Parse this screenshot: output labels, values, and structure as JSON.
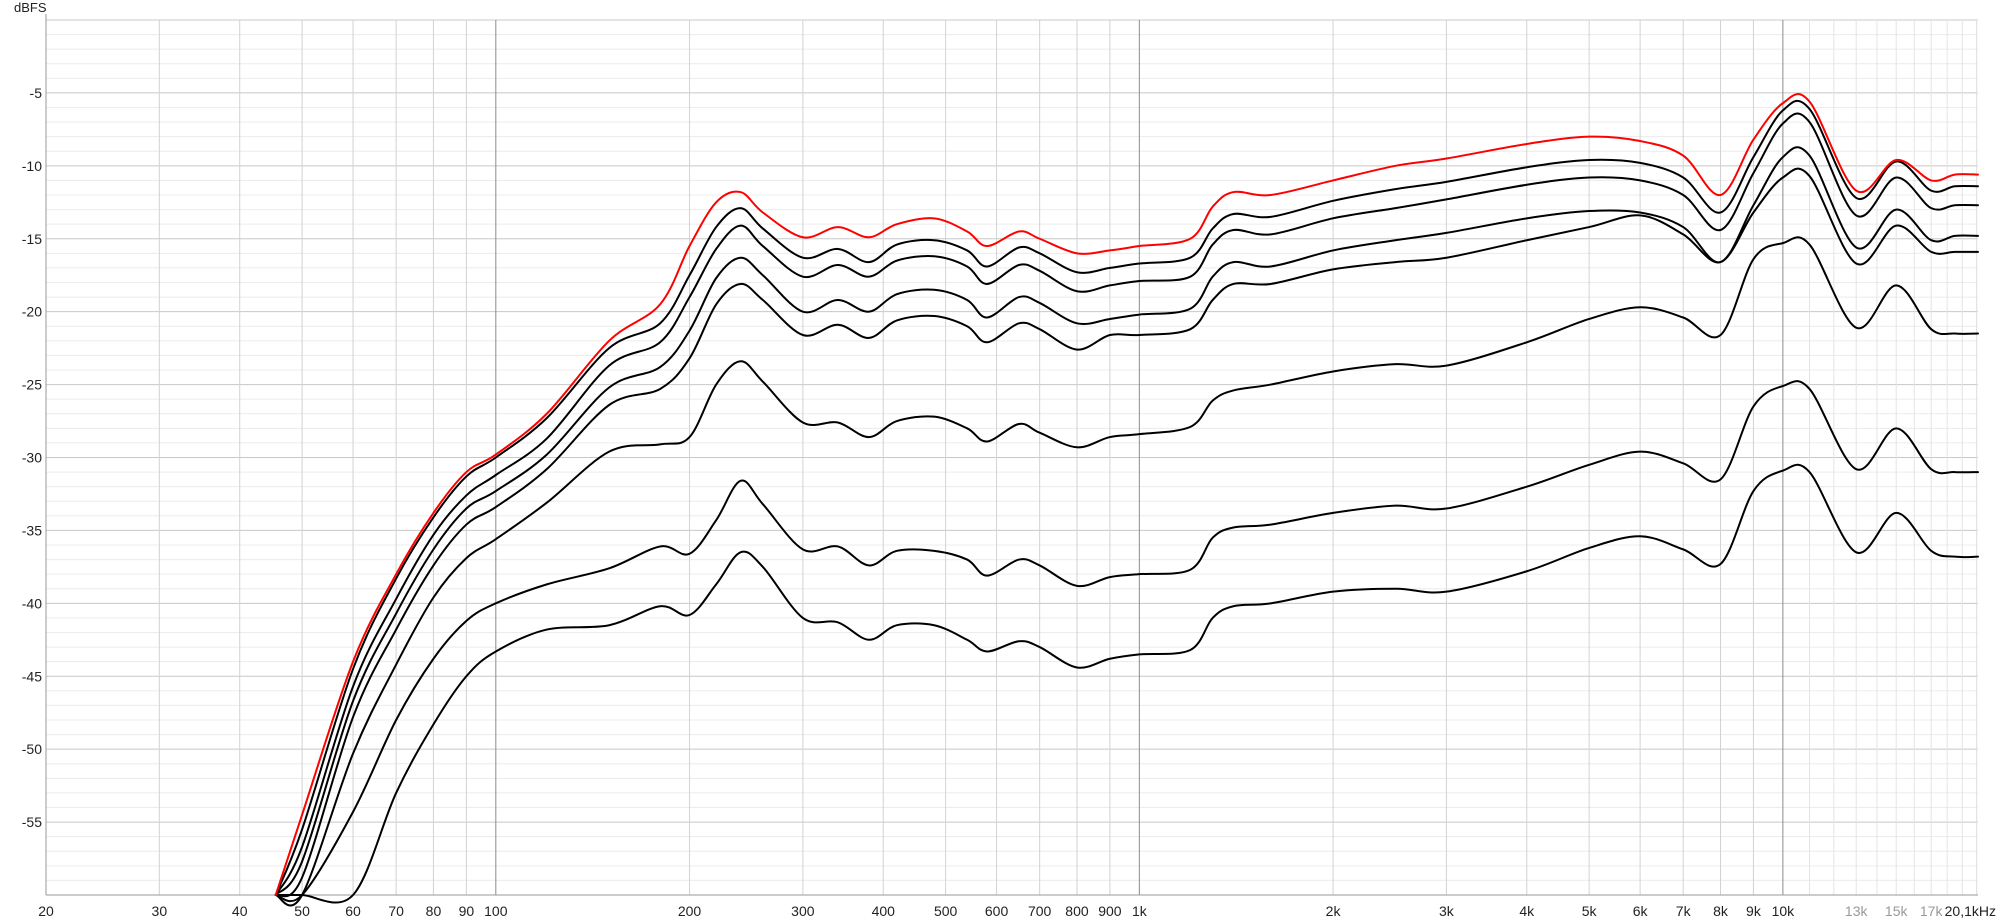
{
  "chart_data": {
    "type": "line",
    "title": "",
    "ylabel": "dBFS",
    "xlabel": "",
    "x_scale": "log",
    "xlim": [
      20,
      20100
    ],
    "ylim": [
      -60,
      0
    ],
    "grid": true,
    "x_ticks": [
      {
        "value": 20,
        "label": "20"
      },
      {
        "value": 30,
        "label": "30"
      },
      {
        "value": 40,
        "label": "40"
      },
      {
        "value": 50,
        "label": "50"
      },
      {
        "value": 60,
        "label": "60"
      },
      {
        "value": 70,
        "label": "70"
      },
      {
        "value": 80,
        "label": "80"
      },
      {
        "value": 90,
        "label": "90"
      },
      {
        "value": 100,
        "label": "100"
      },
      {
        "value": 200,
        "label": "200"
      },
      {
        "value": 300,
        "label": "300"
      },
      {
        "value": 400,
        "label": "400"
      },
      {
        "value": 500,
        "label": "500"
      },
      {
        "value": 600,
        "label": "600"
      },
      {
        "value": 700,
        "label": "700"
      },
      {
        "value": 800,
        "label": "800"
      },
      {
        "value": 900,
        "label": "900"
      },
      {
        "value": 1000,
        "label": "1k"
      },
      {
        "value": 2000,
        "label": "2k"
      },
      {
        "value": 3000,
        "label": "3k"
      },
      {
        "value": 4000,
        "label": "4k"
      },
      {
        "value": 5000,
        "label": "5k"
      },
      {
        "value": 6000,
        "label": "6k"
      },
      {
        "value": 7000,
        "label": "7k"
      },
      {
        "value": 8000,
        "label": "8k"
      },
      {
        "value": 9000,
        "label": "9k"
      },
      {
        "value": 10000,
        "label": "10k"
      },
      {
        "value": 13000,
        "label": "13k",
        "faint": true
      },
      {
        "value": 15000,
        "label": "15k",
        "faint": true
      },
      {
        "value": 17000,
        "label": "17k",
        "faint": true
      },
      {
        "value": 20100,
        "label": "20,1kHz"
      }
    ],
    "y_ticks": [
      {
        "value": -5,
        "label": "-5"
      },
      {
        "value": -10,
        "label": "-10"
      },
      {
        "value": -15,
        "label": "-15"
      },
      {
        "value": -20,
        "label": "-20"
      },
      {
        "value": -25,
        "label": "-25"
      },
      {
        "value": -30,
        "label": "-30"
      },
      {
        "value": -35,
        "label": "-35"
      },
      {
        "value": -40,
        "label": "-40"
      },
      {
        "value": -45,
        "label": "-45"
      },
      {
        "value": -50,
        "label": "-50"
      },
      {
        "value": -55,
        "label": "-55"
      }
    ],
    "x": [
      45.5,
      50,
      60,
      70,
      80,
      90,
      100,
      120,
      150,
      180,
      200,
      220,
      240,
      260,
      300,
      340,
      380,
      420,
      480,
      540,
      580,
      650,
      700,
      800,
      900,
      1000,
      1200,
      1300,
      1400,
      1600,
      2000,
      2500,
      3000,
      4000,
      5000,
      6000,
      7000,
      8000,
      9000,
      10000,
      11000,
      13000,
      15000,
      17000,
      18500,
      20100
    ],
    "series": [
      {
        "color": "#ff0000",
        "values": [
          -60.0,
          -54.5,
          -44.0,
          -38.0,
          -33.8,
          -31.0,
          -29.8,
          -27.0,
          -22.0,
          -19.5,
          -15.5,
          -12.5,
          -11.8,
          -13.2,
          -14.9,
          -14.2,
          -14.9,
          -14.0,
          -13.6,
          -14.5,
          -15.5,
          -14.5,
          -15.0,
          -16.0,
          -15.8,
          -15.5,
          -15.0,
          -12.8,
          -11.8,
          -12.0,
          -11.0,
          -10.0,
          -9.5,
          -8.5,
          -8.0,
          -8.3,
          -9.3,
          -12.0,
          -8.2,
          -5.7,
          -5.6,
          -11.7,
          -9.6,
          -11.0,
          -10.6,
          -10.6
        ]
      },
      {
        "color": "#000000",
        "values": [
          -60.0,
          -55.5,
          -44.5,
          -38.3,
          -34.1,
          -31.3,
          -30.0,
          -27.3,
          -22.5,
          -20.8,
          -17.5,
          -14.2,
          -12.9,
          -14.3,
          -16.3,
          -15.7,
          -16.6,
          -15.4,
          -15.1,
          -15.8,
          -16.9,
          -15.6,
          -16.0,
          -17.3,
          -17.0,
          -16.7,
          -16.3,
          -14.3,
          -13.3,
          -13.5,
          -12.4,
          -11.6,
          -11.1,
          -10.1,
          -9.6,
          -9.8,
          -10.8,
          -13.2,
          -9.4,
          -6.2,
          -6.1,
          -12.2,
          -9.7,
          -11.7,
          -11.4,
          -11.4
        ]
      },
      {
        "color": "#000000",
        "values": [
          -60.0,
          -56.7,
          -45.7,
          -39.7,
          -35.3,
          -32.6,
          -31.2,
          -28.7,
          -23.7,
          -22.1,
          -19.0,
          -15.7,
          -14.1,
          -15.5,
          -17.6,
          -16.8,
          -17.6,
          -16.5,
          -16.2,
          -16.9,
          -18.1,
          -16.8,
          -17.2,
          -18.6,
          -18.2,
          -17.9,
          -17.6,
          -15.4,
          -14.4,
          -14.7,
          -13.6,
          -12.9,
          -12.3,
          -11.3,
          -10.8,
          -11.0,
          -12.0,
          -14.4,
          -10.5,
          -7.1,
          -7.0,
          -13.4,
          -10.8,
          -12.9,
          -12.7,
          -12.7
        ]
      },
      {
        "color": "#000000",
        "values": [
          -60.0,
          -57.7,
          -46.7,
          -40.7,
          -36.3,
          -33.5,
          -32.3,
          -29.8,
          -25.2,
          -23.8,
          -21.3,
          -17.7,
          -16.3,
          -17.5,
          -20.0,
          -19.2,
          -20.0,
          -18.8,
          -18.5,
          -19.2,
          -20.4,
          -19.0,
          -19.4,
          -20.8,
          -20.5,
          -20.2,
          -19.8,
          -17.6,
          -16.6,
          -16.9,
          -15.8,
          -15.1,
          -14.6,
          -13.6,
          -13.1,
          -13.2,
          -14.2,
          -16.6,
          -12.7,
          -9.4,
          -9.3,
          -15.6,
          -13.0,
          -15.1,
          -14.8,
          -14.8
        ]
      },
      {
        "color": "#000000",
        "values": [
          -60.0,
          -58.8,
          -47.8,
          -41.8,
          -37.4,
          -34.6,
          -33.4,
          -30.8,
          -26.4,
          -25.3,
          -23.2,
          -19.5,
          -18.1,
          -19.2,
          -21.6,
          -20.9,
          -21.8,
          -20.6,
          -20.3,
          -21.0,
          -22.1,
          -20.8,
          -21.2,
          -22.6,
          -21.6,
          -21.6,
          -21.2,
          -19.2,
          -18.1,
          -18.1,
          -17.1,
          -16.6,
          -16.3,
          -15.1,
          -14.2,
          -13.4,
          -14.7,
          -16.6,
          -13.2,
          -10.8,
          -10.7,
          -16.7,
          -14.1,
          -15.9,
          -15.9,
          -15.9
        ]
      },
      {
        "color": "#000000",
        "values": [
          -60.0,
          -60.0,
          -50.3,
          -44.2,
          -39.6,
          -36.9,
          -35.6,
          -33.1,
          -29.6,
          -29.1,
          -28.6,
          -25.0,
          -23.4,
          -24.8,
          -27.6,
          -27.6,
          -28.6,
          -27.5,
          -27.2,
          -28.0,
          -28.9,
          -27.7,
          -28.3,
          -29.3,
          -28.6,
          -28.4,
          -27.9,
          -26.1,
          -25.4,
          -25.0,
          -24.1,
          -23.6,
          -23.7,
          -22.1,
          -20.5,
          -19.7,
          -20.4,
          -21.6,
          -16.4,
          -15.3,
          -15.4,
          -21.1,
          -18.2,
          -21.2,
          -21.5,
          -21.5
        ]
      },
      {
        "color": "#000000",
        "values": [
          -60.0,
          -60.0,
          -54.3,
          -48.0,
          -43.8,
          -41.2,
          -40.0,
          -38.7,
          -37.6,
          -36.1,
          -36.6,
          -34.3,
          -31.6,
          -33.2,
          -36.3,
          -36.1,
          -37.4,
          -36.4,
          -36.4,
          -37.0,
          -38.1,
          -37.0,
          -37.4,
          -38.8,
          -38.2,
          -38.0,
          -37.7,
          -35.5,
          -34.8,
          -34.6,
          -33.8,
          -33.3,
          -33.5,
          -32.0,
          -30.5,
          -29.6,
          -30.4,
          -31.5,
          -26.5,
          -25.1,
          -25.3,
          -30.8,
          -28.0,
          -30.8,
          -31.0,
          -31.0
        ]
      },
      {
        "color": "#000000",
        "values": [
          -60.0,
          -60.0,
          -60.0,
          -53.0,
          -48.3,
          -45.0,
          -43.3,
          -41.8,
          -41.5,
          -40.2,
          -40.8,
          -38.7,
          -36.5,
          -37.5,
          -41.0,
          -41.3,
          -42.5,
          -41.5,
          -41.5,
          -42.5,
          -43.3,
          -42.6,
          -43.0,
          -44.4,
          -43.8,
          -43.5,
          -43.2,
          -41.0,
          -40.2,
          -40.0,
          -39.2,
          -39.0,
          -39.2,
          -37.8,
          -36.2,
          -35.4,
          -36.3,
          -37.3,
          -32.3,
          -30.9,
          -31.0,
          -36.5,
          -33.8,
          -36.4,
          -36.8,
          -36.8
        ]
      }
    ]
  }
}
